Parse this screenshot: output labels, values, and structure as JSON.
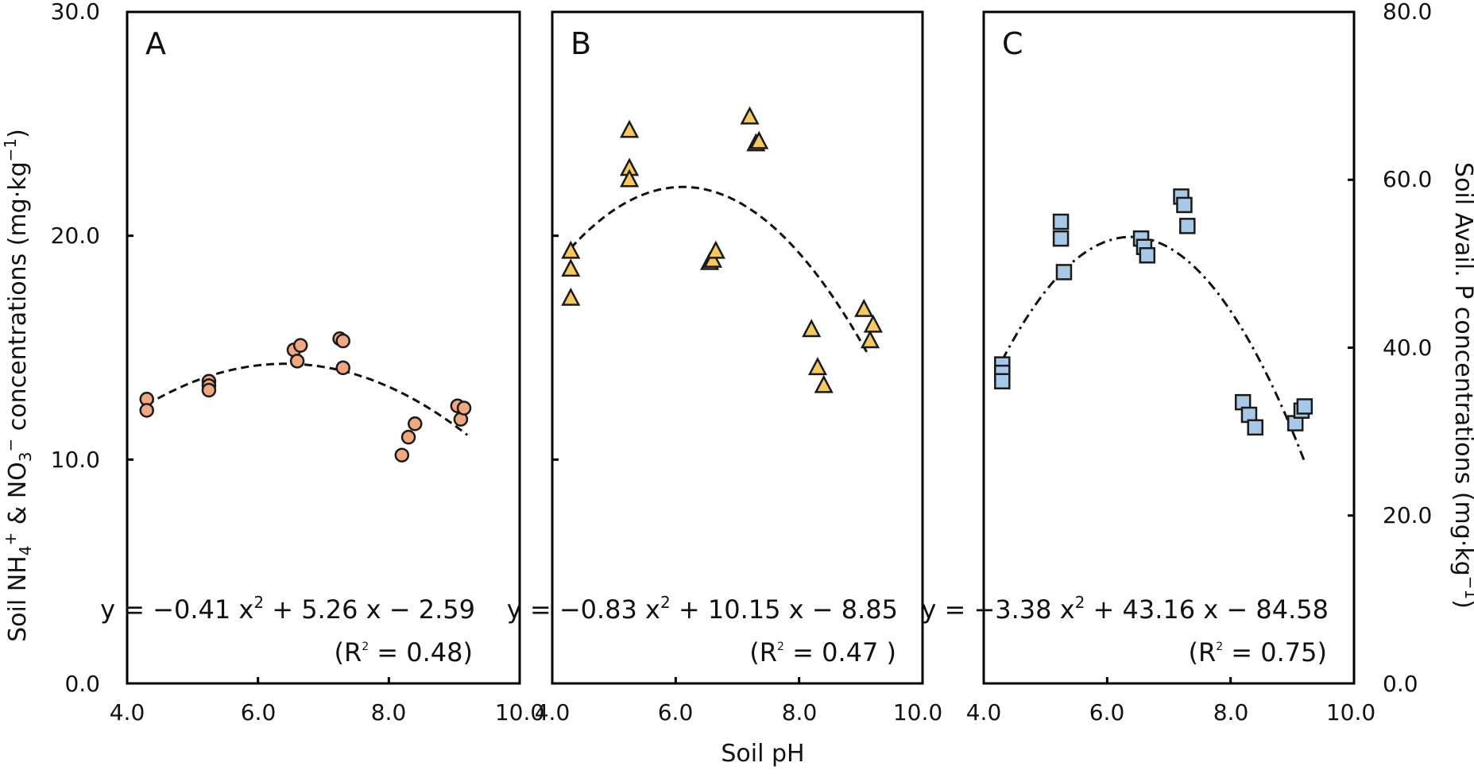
{
  "colors": {
    "circle_fill": "#F0A882",
    "triangle_fill": "#F6C85F",
    "square_fill": "#A8C8E8",
    "marker_stroke": "#1a1a1a",
    "frame": "#000000"
  },
  "left_ytick_labels": [
    "30.0",
    "20.0",
    "10.0",
    "0.0"
  ],
  "right_ytick_labels": [
    "80.0",
    "60.0",
    "40.0",
    "20.0",
    "0.0"
  ],
  "left_ylabel_pre": "Soil NH",
  "left_ylabel_sub1": "4",
  "left_ylabel_sup1": "+",
  "left_ylabel_mid": " & NO",
  "left_ylabel_sub2": "3",
  "left_ylabel_sup2": "−",
  "left_ylabel_post": " concentrations (mg·kg",
  "left_ylabel_sup3": "−1",
  "left_ylabel_end": ")",
  "right_ylabel_pre": "Soil Avail. P concentrations (mg·kg",
  "right_ylabel_sup": "−1",
  "right_ylabel_end": ")",
  "xlabel": "Soil pH",
  "chart_data": [
    {
      "type": "scatter",
      "panel_label": "A",
      "marker": "circle",
      "xlabel": "Soil pH",
      "xlim": [
        4.0,
        10.0
      ],
      "ylim": [
        0.0,
        30.0
      ],
      "xtick_labels": [
        "4.0",
        "6.0",
        "8.0",
        "10.0"
      ],
      "x": [
        4.3,
        4.3,
        5.25,
        5.25,
        5.25,
        6.55,
        6.6,
        6.65,
        7.25,
        7.3,
        7.3,
        8.2,
        8.3,
        8.4,
        9.05,
        9.1,
        9.15
      ],
      "y": [
        12.7,
        12.2,
        13.5,
        13.3,
        13.1,
        14.9,
        14.4,
        15.1,
        15.4,
        14.1,
        15.3,
        10.2,
        11.0,
        11.6,
        12.4,
        11.8,
        12.3
      ],
      "trend_coeffs": [
        -0.41,
        5.26,
        -2.59
      ],
      "trend_range": [
        4.3,
        9.2
      ],
      "trend_style": "dashed",
      "equation_pre": "y = −0.41 x",
      "equation_sup": "2",
      "equation_post": " + 5.26 x − 2.59",
      "r2_pre": "(R",
      "r2_sup": "2",
      "r2_post": " = 0.48)"
    },
    {
      "type": "scatter",
      "panel_label": "B",
      "marker": "triangle",
      "xlabel": "Soil pH",
      "xlim": [
        4.0,
        10.0
      ],
      "ylim": [
        0.0,
        30.0
      ],
      "xtick_labels": [
        "4.0",
        "6.0",
        "8.0",
        "10.0"
      ],
      "x": [
        4.3,
        4.3,
        4.3,
        5.25,
        5.25,
        5.25,
        6.55,
        6.6,
        6.65,
        7.2,
        7.3,
        7.35,
        8.2,
        8.3,
        8.4,
        9.05,
        9.15,
        9.2
      ],
      "y": [
        19.3,
        18.5,
        17.2,
        24.7,
        23.0,
        22.5,
        18.8,
        18.9,
        19.3,
        25.3,
        24.1,
        24.2,
        15.8,
        14.1,
        13.3,
        16.7,
        15.3,
        16.0
      ],
      "trend_coeffs": [
        -0.83,
        10.15,
        -8.85
      ],
      "trend_range": [
        4.3,
        9.1
      ],
      "trend_style": "dashed",
      "equation_pre": "y = −0.83 x",
      "equation_sup": "2",
      "equation_post": " + 10.15 x − 8.85",
      "r2_pre": "(R",
      "r2_sup": "2",
      "r2_post": " = 0.47 )"
    },
    {
      "type": "scatter",
      "panel_label": "C",
      "marker": "square",
      "xlabel": "Soil pH",
      "xlim": [
        4.0,
        10.0
      ],
      "ylim": [
        0.0,
        80.0
      ],
      "xtick_labels": [
        "4.0",
        "6.0",
        "8.0",
        "10.0"
      ],
      "x": [
        4.3,
        4.3,
        4.3,
        5.25,
        5.25,
        5.3,
        6.55,
        6.6,
        6.65,
        7.2,
        7.25,
        7.3,
        8.2,
        8.3,
        8.4,
        9.05,
        9.15,
        9.2
      ],
      "y": [
        38.0,
        37.0,
        36.0,
        55.0,
        53.0,
        49.0,
        53.0,
        52.0,
        51.0,
        58.0,
        57.0,
        54.5,
        33.5,
        32.0,
        30.5,
        31.0,
        32.5,
        33.0
      ],
      "trend_coeffs": [
        -3.38,
        43.16,
        -84.58
      ],
      "trend_range": [
        4.3,
        9.2
      ],
      "trend_style": "dashdot",
      "equation_pre": "y = −3.38 x",
      "equation_sup": "2",
      "equation_post": " + 43.16 x − 84.58",
      "r2_pre": "(R",
      "r2_sup": "2",
      "r2_post": " = 0.75)"
    }
  ]
}
